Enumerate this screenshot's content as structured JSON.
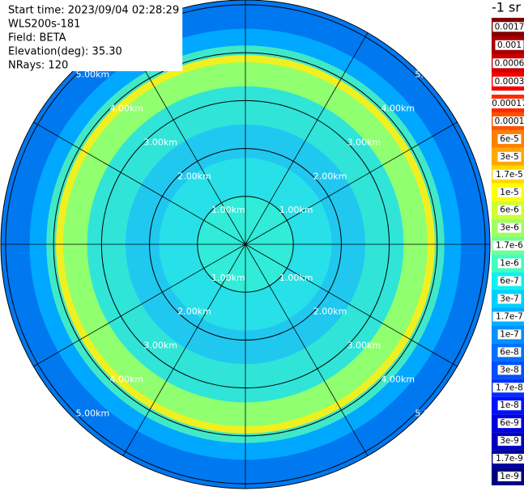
{
  "chart_data": {
    "type": "ppi",
    "info": [
      "Start time: 2023/09/04 02:28:29",
      "WLS200s-181",
      "Field: BETA",
      "Elevation(deg): 35.30",
      "NRays: 120"
    ],
    "max_range_km": 5.1,
    "range_rings": [
      1,
      2,
      3,
      4,
      5
    ],
    "ring_labels": [
      "1.00km",
      "2.00km",
      "3.00km",
      "4.00km",
      "5.00km"
    ],
    "spoke_step_deg": 30,
    "profile": {
      "range_km": [
        1.0,
        1.8,
        2.5,
        3.3,
        3.8,
        3.95,
        4.15,
        4.5,
        5.1
      ],
      "colors": [
        "#30ecd8",
        "#28e0e8",
        "#20c8f0",
        "#30e4d8",
        "#90ff70",
        "#f0f020",
        "#40e8c8",
        "#00a8ff",
        "#0078f0"
      ]
    },
    "colorbar": {
      "title": "-1 sr",
      "top": [
        {
          "label": "0.0017",
          "color": "#800000"
        },
        {
          "label": "0.001",
          "color": "#a80000"
        },
        {
          "label": "0.0006",
          "color": "#d00000"
        },
        {
          "label": "0.0003",
          "color": "#f80000"
        }
      ],
      "main": [
        {
          "label": "0.00017",
          "color": "#ff2800"
        },
        {
          "label": "0.0001",
          "color": "#ff5000"
        },
        {
          "label": "6e-5",
          "color": "#ff8000"
        },
        {
          "label": "3e-5",
          "color": "#ffa800"
        },
        {
          "label": "1.7e-5",
          "color": "#ffd800"
        },
        {
          "label": "1e-5",
          "color": "#ffff00"
        },
        {
          "label": "6e-6",
          "color": "#d0ff30"
        },
        {
          "label": "3e-6",
          "color": "#a0ff60"
        },
        {
          "label": "1.7e-6",
          "color": "#70ff90"
        },
        {
          "label": "1e-6",
          "color": "#40ffc0"
        },
        {
          "label": "6e-7",
          "color": "#10f0f0"
        },
        {
          "label": "3e-7",
          "color": "#00d0ff"
        },
        {
          "label": "1.7e-7",
          "color": "#00b0ff"
        },
        {
          "label": "1e-7",
          "color": "#0090ff"
        },
        {
          "label": "6e-8",
          "color": "#0070ff"
        },
        {
          "label": "3e-8",
          "color": "#0050ff"
        },
        {
          "label": "1.7e-8",
          "color": "#0030ff"
        },
        {
          "label": "1e-8",
          "color": "#0010ff"
        },
        {
          "label": "6e-9",
          "color": "#0000e0"
        },
        {
          "label": "3e-9",
          "color": "#0000c0"
        },
        {
          "label": "1.7e-9",
          "color": "#0000a0"
        },
        {
          "label": "1e-9",
          "color": "#000080"
        }
      ]
    }
  }
}
